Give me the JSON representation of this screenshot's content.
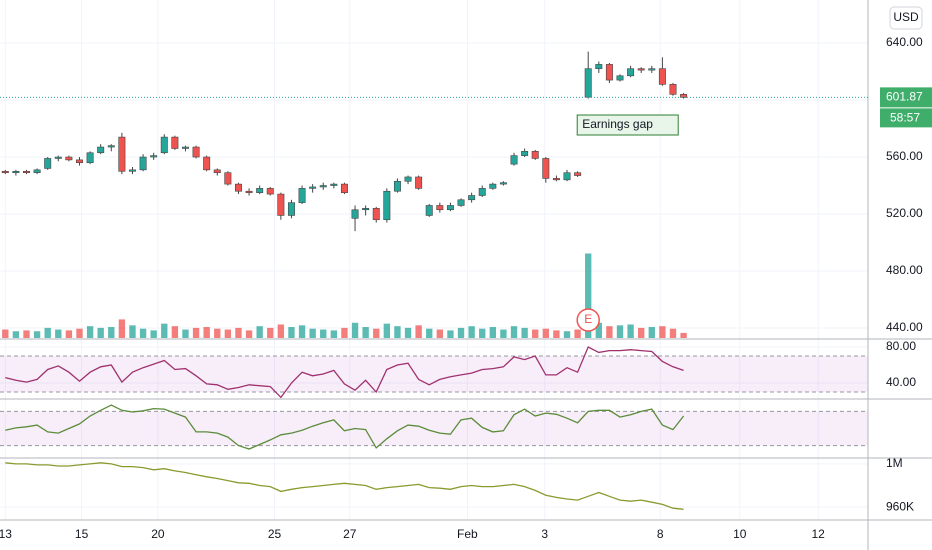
{
  "chart_data": [
    {
      "type": "candlestick",
      "currency": "USD",
      "countdown": "58:57",
      "annotation": "Earnings gap",
      "event_marker": "E",
      "up_color": "#26a69a",
      "down_color": "#ef5350",
      "grid": true,
      "x": [
        0,
        1,
        2,
        3,
        4,
        5,
        6,
        7,
        8,
        9,
        10,
        11,
        12,
        13,
        14,
        15,
        16,
        17,
        18,
        19,
        20,
        21,
        22,
        23,
        24,
        25,
        26,
        27,
        28,
        29,
        30,
        31,
        32,
        33,
        34,
        35,
        36,
        37,
        38,
        39,
        40,
        41,
        42,
        43,
        44,
        45,
        46,
        47,
        48,
        49,
        50,
        51,
        52,
        53,
        54,
        55,
        56,
        57,
        58,
        59,
        60,
        61,
        62,
        63,
        64
      ],
      "open": [
        550,
        549,
        550,
        549,
        552,
        559,
        560,
        558,
        556,
        563,
        567,
        574,
        550,
        551,
        560,
        563,
        574,
        566,
        567,
        560,
        551,
        549,
        541,
        536,
        535,
        538,
        534,
        519,
        528,
        538,
        539,
        540,
        541,
        517,
        523,
        524,
        516,
        536,
        543,
        546,
        519,
        526,
        523,
        526,
        530,
        533,
        538,
        541,
        555,
        561,
        564,
        559,
        545,
        544,
        549,
        602,
        622,
        625,
        614,
        617,
        622,
        621,
        622,
        611,
        604
      ],
      "high": [
        551,
        551,
        551,
        552,
        560,
        561,
        561,
        560,
        564,
        569,
        569,
        577,
        553,
        562,
        563,
        576,
        575,
        568,
        568,
        561,
        552,
        550,
        542,
        538,
        540,
        539,
        535,
        530,
        540,
        541,
        542,
        542,
        542,
        526,
        526,
        525,
        538,
        545,
        547,
        547,
        527,
        528,
        528,
        531,
        535,
        540,
        542,
        543,
        563,
        566,
        565,
        560,
        547,
        551,
        550,
        634,
        627,
        626,
        618,
        624,
        623,
        624,
        630,
        612,
        605
      ],
      "low": [
        548,
        547,
        548,
        548,
        551,
        557,
        557,
        554,
        555,
        562,
        564,
        548,
        548,
        550,
        558,
        562,
        565,
        564,
        559,
        550,
        547,
        540,
        534,
        533,
        534,
        533,
        516,
        517,
        527,
        535,
        537,
        538,
        534,
        508,
        519,
        514,
        514,
        535,
        541,
        537,
        518,
        521,
        522,
        525,
        528,
        532,
        537,
        540,
        554,
        560,
        558,
        542,
        543,
        543,
        546,
        601,
        619,
        612,
        613,
        616,
        619,
        619,
        610,
        603,
        601
      ],
      "close": [
        549,
        550,
        549,
        551,
        559,
        560,
        558,
        556,
        563,
        567,
        568,
        550,
        551,
        560,
        561,
        574,
        566,
        567,
        560,
        551,
        549,
        541,
        536,
        535,
        538,
        534,
        519,
        528,
        538,
        539,
        540,
        541,
        535,
        523,
        524,
        516,
        536,
        543,
        546,
        538,
        526,
        523,
        526,
        530,
        533,
        538,
        541,
        542,
        561,
        564,
        559,
        545,
        544,
        549,
        547,
        622,
        625,
        614,
        617,
        622,
        621,
        622,
        611,
        604,
        601.87
      ],
      "xlim": [
        -0.5,
        81.4
      ],
      "xticks": [
        {
          "value": 0,
          "label": "13"
        },
        {
          "value": 7.2,
          "label": "15"
        },
        {
          "value": 14.4,
          "label": "20"
        },
        {
          "value": 25.4,
          "label": "25"
        },
        {
          "value": 32.5,
          "label": "27"
        },
        {
          "value": 43.6,
          "label": "Feb"
        },
        {
          "value": 50.9,
          "label": "3"
        },
        {
          "value": 61.8,
          "label": "8"
        },
        {
          "value": 69.3,
          "label": "10"
        },
        {
          "value": 76.7,
          "label": "12"
        }
      ],
      "ylim": [
        433,
        670.2
      ],
      "yticks": [
        {
          "value": 440,
          "label": "440.00"
        },
        {
          "value": 480,
          "label": "480.00"
        },
        {
          "value": 520,
          "label": "520.00"
        },
        {
          "value": 560,
          "label": "560.00"
        },
        {
          "value": 600,
          "label": "600.00"
        },
        {
          "value": 640,
          "label": "640.00"
        }
      ]
    },
    {
      "type": "bar",
      "ylim": [
        0,
        400
      ],
      "values": [
        10,
        8,
        9,
        8,
        12,
        10,
        9,
        11,
        14,
        12,
        13,
        22,
        15,
        11,
        9,
        17,
        14,
        10,
        12,
        13,
        11,
        10,
        12,
        9,
        14,
        12,
        16,
        13,
        15,
        11,
        10,
        9,
        12,
        18,
        13,
        11,
        17,
        14,
        12,
        15,
        11,
        10,
        9,
        12,
        14,
        11,
        13,
        10,
        14,
        12,
        10,
        11,
        9,
        8,
        10,
        100,
        18,
        14,
        15,
        16,
        12,
        13,
        14,
        11,
        6
      ]
    },
    {
      "type": "line",
      "color": "#a0306e",
      "band_color": "#9c27b0",
      "band": [
        30,
        70
      ],
      "grid": true,
      "ylim": [
        23.3,
        87.8
      ],
      "yticks": [
        {
          "value": 40,
          "label": "40.00"
        },
        {
          "value": 80,
          "label": "80.00"
        }
      ],
      "values": [
        46,
        43,
        41,
        44,
        55,
        59,
        52,
        42,
        52,
        58,
        60,
        41,
        52,
        57,
        61,
        65,
        55,
        56,
        48,
        39,
        38,
        33,
        35,
        38,
        37,
        36,
        24,
        40,
        52,
        48,
        50,
        54,
        39,
        32,
        43,
        30,
        55,
        60,
        62,
        44,
        38,
        44,
        47,
        49,
        51,
        55,
        56,
        58,
        69,
        66,
        70,
        49,
        49,
        57,
        52,
        80,
        74,
        76,
        76,
        77,
        76,
        75,
        64,
        58,
        54
      ]
    },
    {
      "type": "line",
      "color": "#5b8c3a",
      "band_color": "#9c27b0",
      "band": [
        20,
        80
      ],
      "ylim": [
        0,
        100
      ],
      "values": [
        47,
        51,
        53,
        56,
        44,
        42,
        50,
        58,
        72,
        82,
        91,
        82,
        79,
        81,
        85,
        84,
        77,
        70,
        44,
        44,
        42,
        35,
        20,
        14,
        22,
        30,
        39,
        42,
        47,
        54,
        60,
        65,
        46,
        50,
        48,
        16,
        32,
        46,
        56,
        54,
        47,
        42,
        40,
        65,
        68,
        52,
        44,
        46,
        74,
        84,
        72,
        77,
        75,
        68,
        60,
        80,
        82,
        82,
        70,
        74,
        80,
        84,
        56,
        48,
        72
      ]
    },
    {
      "type": "line",
      "color": "#8b9a2e",
      "grid": true,
      "ylim": [
        949000,
        1004500
      ],
      "yticks": [
        {
          "value": 960000,
          "label": "960K"
        },
        {
          "value": 1000000,
          "label": "1M"
        }
      ],
      "values": [
        1001000,
        1000000,
        1000000,
        999000,
        999000,
        998000,
        998000,
        999000,
        1000000,
        1001000,
        1000000,
        997500,
        997500,
        996500,
        994500,
        995500,
        993500,
        992000,
        990000,
        988000,
        986500,
        984500,
        982500,
        982000,
        980000,
        979000,
        974500,
        976500,
        978000,
        979000,
        980000,
        981000,
        982000,
        981000,
        980000,
        976500,
        978000,
        979000,
        980000,
        981000,
        978000,
        977500,
        976500,
        979000,
        980000,
        979000,
        979000,
        980000,
        981000,
        979000,
        975500,
        971000,
        969000,
        967500,
        966500,
        970000,
        973500,
        970000,
        966500,
        965500,
        966500,
        964500,
        962500,
        959000,
        958000
      ]
    }
  ]
}
